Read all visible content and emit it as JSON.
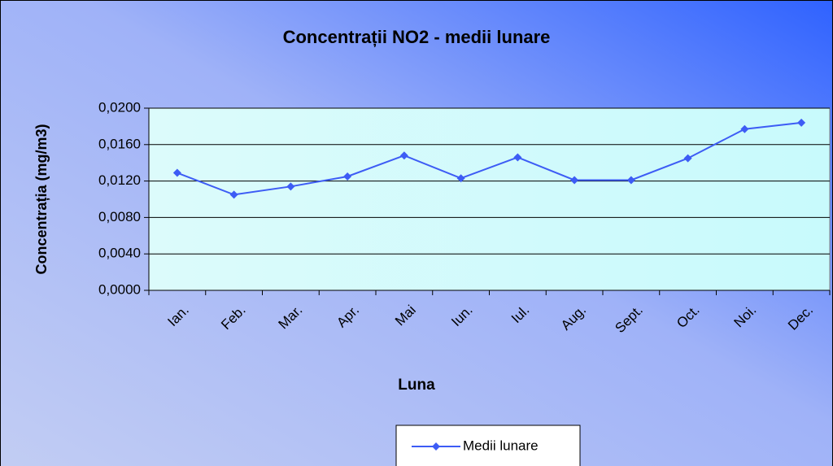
{
  "chart_data": {
    "type": "line",
    "title": "Concentrații NO2 - medii lunare",
    "x_label": "Luna",
    "y_label": "Concentrația (mg/m3)",
    "categories": [
      "Ian.",
      "Feb.",
      "Mar.",
      "Apr.",
      "Mai",
      "Iun.",
      "Iul.",
      "Aug.",
      "Sept.",
      "Oct.",
      "Noi.",
      "Dec."
    ],
    "series": [
      {
        "name": "Medii lunare",
        "color": "#3d5cf5",
        "values": [
          0.0129,
          0.0105,
          0.0114,
          0.0125,
          0.0148,
          0.0123,
          0.0146,
          0.0121,
          0.0121,
          0.0145,
          0.0177,
          0.0184
        ]
      }
    ],
    "ylim": [
      0,
      0.02
    ],
    "yticks": [
      {
        "value": 0,
        "label": "0,0000"
      },
      {
        "value": 0.004,
        "label": "0,0040"
      },
      {
        "value": 0.008,
        "label": "0,0080"
      },
      {
        "value": 0.012,
        "label": "0,0120"
      },
      {
        "value": 0.016,
        "label": "0,0160"
      },
      {
        "value": 0.02,
        "label": "0,0200"
      }
    ],
    "grid": true,
    "legend": "bottom"
  }
}
